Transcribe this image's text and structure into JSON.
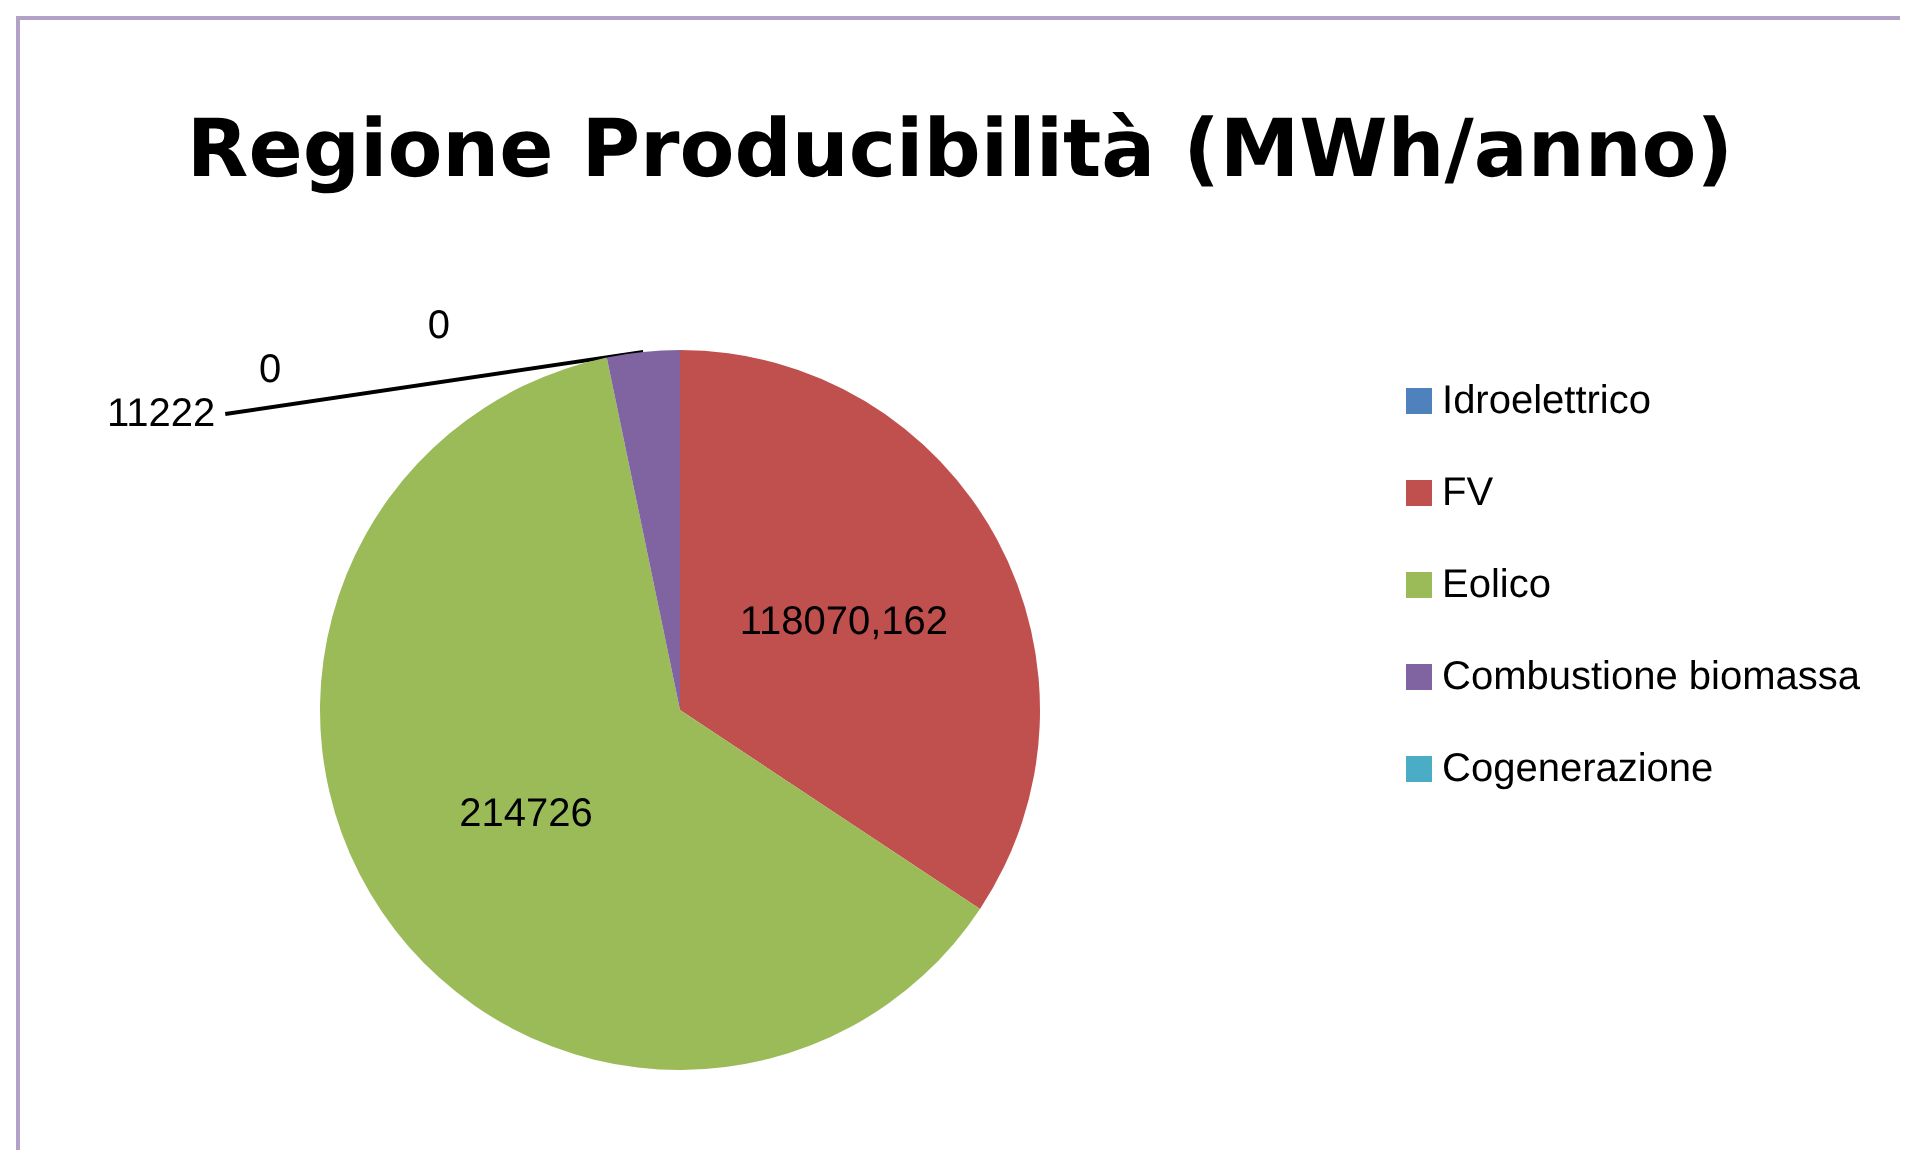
{
  "chart_data": {
    "type": "pie",
    "title": "Regione Producibilità (MWh/anno)",
    "categories": [
      "Idroelettrico",
      "FV",
      "Eolico",
      "Combustione biomassa",
      "Cogenerazione"
    ],
    "values": [
      0,
      118070.162,
      214726,
      11222,
      0
    ],
    "value_labels": [
      "0",
      "118070,162",
      "214726",
      "11222",
      "0"
    ],
    "colors": [
      "#4f81bd",
      "#c0504d",
      "#9bbb59",
      "#8064a2",
      "#4bacc6"
    ],
    "legend": "right"
  }
}
